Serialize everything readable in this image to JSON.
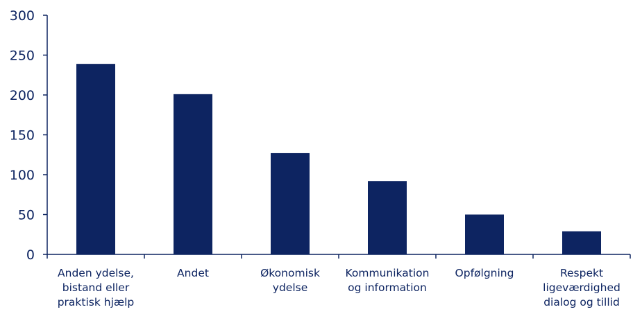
{
  "chart_data": {
    "type": "bar",
    "title": "",
    "xlabel": "",
    "ylabel": "",
    "ylim": [
      0,
      300
    ],
    "yticks": [
      0,
      50,
      100,
      150,
      200,
      250,
      300
    ],
    "grid": false,
    "legend": "none",
    "categories": [
      [
        "Anden ydelse,",
        "bistand eller",
        "praktisk hjælp"
      ],
      [
        "Andet"
      ],
      [
        "Økonomisk",
        "ydelse"
      ],
      [
        "Kommunikation",
        "og information"
      ],
      [
        "Opfølgning"
      ],
      [
        "Respekt",
        "ligeværdighed",
        "dialog og tillid"
      ]
    ],
    "values": [
      239,
      201,
      127,
      92,
      50,
      29
    ],
    "colors": {
      "bar": "#0d2461",
      "axis": "#0d2461",
      "text": "#0d2461"
    }
  }
}
